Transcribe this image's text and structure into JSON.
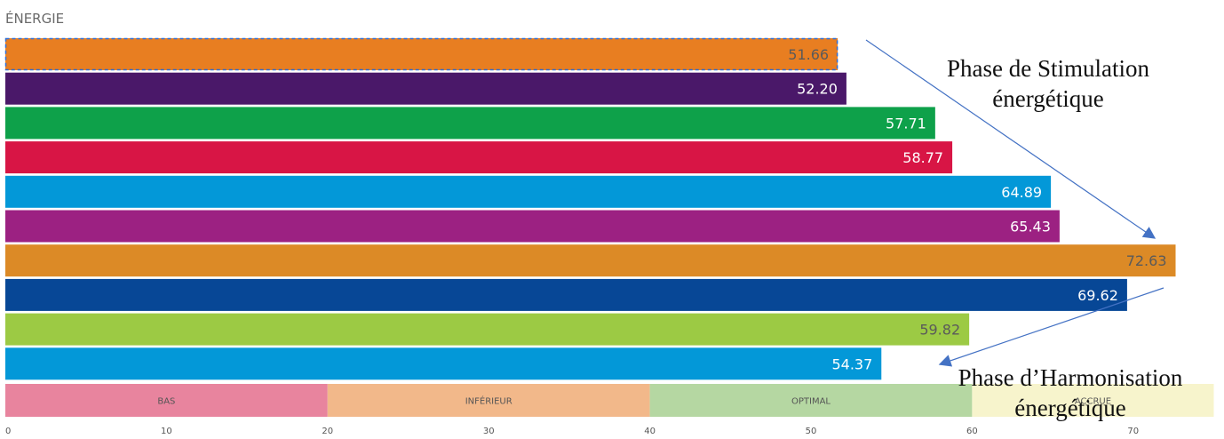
{
  "chart_data": {
    "type": "bar",
    "orientation": "horizontal",
    "title": "ÉNERGIE",
    "xlim": [
      0,
      75
    ],
    "x_ticks": [
      "0",
      "10",
      "20",
      "30",
      "40",
      "50",
      "60",
      "70"
    ],
    "bars": [
      {
        "value": 51.66,
        "label": "51.66",
        "color": "#e87e21",
        "label_color": "#5a5a5a",
        "selected": true
      },
      {
        "value": 52.2,
        "label": "52.20",
        "color": "#4a1869",
        "label_color": "#ffffff"
      },
      {
        "value": 57.71,
        "label": "57.71",
        "color": "#0ea14a",
        "label_color": "#ffffff"
      },
      {
        "value": 58.77,
        "label": "58.77",
        "color": "#d81545",
        "label_color": "#ffffff"
      },
      {
        "value": 64.89,
        "label": "64.89",
        "color": "#0398d8",
        "label_color": "#ffffff"
      },
      {
        "value": 65.43,
        "label": "65.43",
        "color": "#9c2182",
        "label_color": "#ffffff"
      },
      {
        "value": 72.63,
        "label": "72.63",
        "color": "#dc8a26",
        "label_color": "#5a5a5a"
      },
      {
        "value": 69.62,
        "label": "69.62",
        "color": "#074796",
        "label_color": "#ffffff"
      },
      {
        "value": 59.82,
        "label": "59.82",
        "color": "#9cca44",
        "label_color": "#5a5a5a"
      },
      {
        "value": 54.37,
        "label": "54.37",
        "color": "#0398d8",
        "label_color": "#ffffff"
      }
    ],
    "zones": [
      {
        "label": "BAS",
        "from": 0,
        "to": 20,
        "color": "#e8849e"
      },
      {
        "label": "INFÉRIEUR",
        "from": 20,
        "to": 40,
        "color": "#f2b88a"
      },
      {
        "label": "OPTIMAL",
        "from": 40,
        "to": 60,
        "color": "#b5d7a2"
      },
      {
        "label": "ACCRUE",
        "from": 60,
        "to": 75,
        "color": "#f7f4cc"
      }
    ],
    "annotations": [
      {
        "lines": [
          "Phase de Stimulation",
          "énergétique"
        ]
      },
      {
        "lines": [
          "Phase d’Harmonisation",
          "énergétique"
        ]
      }
    ],
    "grid": false,
    "legend": "none"
  }
}
